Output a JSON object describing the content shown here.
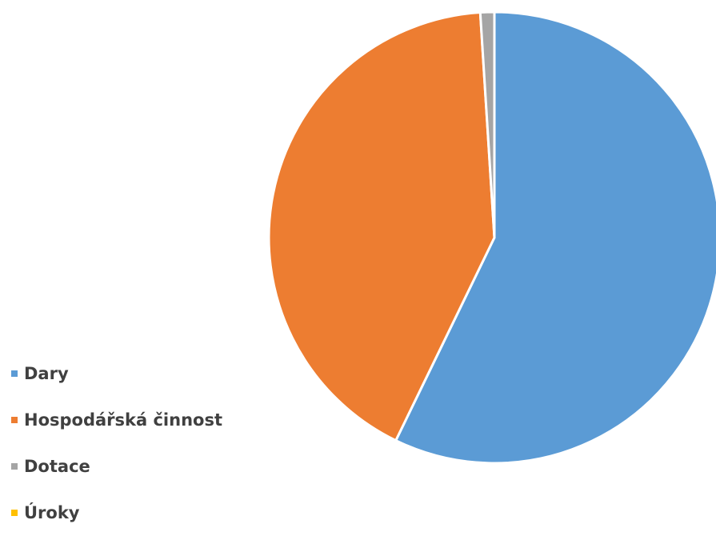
{
  "chart_data": {
    "type": "pie",
    "title": "",
    "legend_position": "bottom-left",
    "slices": [
      {
        "label": "Dary",
        "value": 57.2,
        "color": "#5B9BD5"
      },
      {
        "label": "Hospodářská činnost",
        "value": 41.8,
        "color": "#ED7D31"
      },
      {
        "label": "Dotace",
        "value": 1.0,
        "color": "#A5A5A5"
      },
      {
        "label": "Úroky",
        "value": 0.0,
        "color": "#FFC000"
      }
    ]
  }
}
